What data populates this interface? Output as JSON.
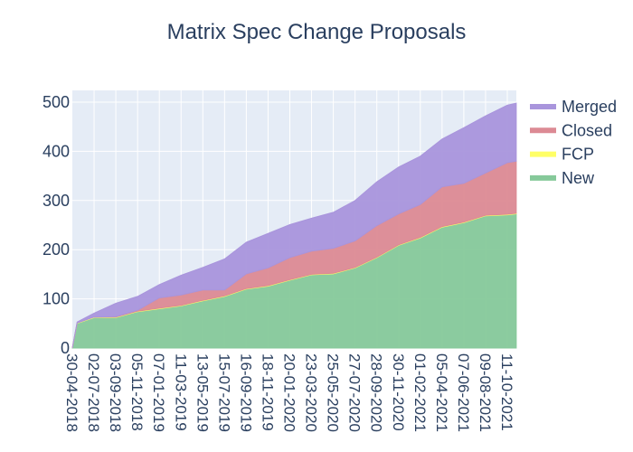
{
  "chart_data": {
    "type": "area",
    "stacked": true,
    "title": "Matrix Spec Change Proposals",
    "xlabel": "",
    "ylabel": "",
    "ylim": [
      0,
      520
    ],
    "yticks": [
      0,
      100,
      200,
      300,
      400,
      500
    ],
    "xticks": [
      "30-04-2018",
      "02-07-2018",
      "03-09-2018",
      "05-11-2018",
      "07-01-2019",
      "11-03-2019",
      "13-05-2019",
      "15-07-2019",
      "16-09-2019",
      "18-11-2019",
      "20-01-2020",
      "23-03-2020",
      "25-05-2020",
      "27-07-2020",
      "28-09-2020",
      "30-11-2020",
      "01-02-2021",
      "05-04-2021",
      "07-06-2021",
      "09-08-2021",
      "11-10-2021"
    ],
    "x": [
      "30-04-2018",
      "14-05-2018",
      "02-07-2018",
      "03-09-2018",
      "05-11-2018",
      "07-01-2019",
      "11-03-2019",
      "13-05-2019",
      "15-07-2019",
      "16-09-2019",
      "18-11-2019",
      "20-01-2020",
      "23-03-2020",
      "25-05-2020",
      "27-07-2020",
      "28-09-2020",
      "30-11-2020",
      "01-02-2021",
      "05-04-2021",
      "07-06-2021",
      "09-08-2021",
      "11-10-2021",
      "06-11-2021"
    ],
    "grid": true,
    "legend_position": "right",
    "series": [
      {
        "name": "New",
        "color": "#86c99a",
        "values": [
          0,
          50,
          62,
          62,
          74,
          80,
          86,
          96,
          105,
          120,
          126,
          138,
          149,
          151,
          163,
          184,
          209,
          224,
          246,
          255,
          269,
          271,
          273
        ]
      },
      {
        "name": "FCP",
        "color": "#ffff66",
        "values": [
          0,
          1,
          1,
          1,
          1,
          1,
          1,
          1,
          1,
          1,
          1,
          1,
          1,
          1,
          1,
          1,
          1,
          1,
          1,
          1,
          1,
          1,
          1
        ]
      },
      {
        "name": "Closed",
        "color": "#dc8a94",
        "values": [
          0,
          0,
          0,
          1,
          2,
          21,
          21,
          21,
          12,
          30,
          36,
          45,
          47,
          51,
          54,
          64,
          63,
          67,
          81,
          79,
          86,
          105,
          106
        ]
      },
      {
        "name": "Merged",
        "color": "#a995dc",
        "values": [
          0,
          2,
          8,
          27,
          28,
          27,
          40,
          46,
          63,
          64,
          70,
          67,
          67,
          73,
          82,
          89,
          95,
          98,
          97,
          113,
          116,
          117,
          118
        ]
      }
    ],
    "legend_order": [
      "Merged",
      "Closed",
      "FCP",
      "New"
    ],
    "background": "#e5ecf6"
  }
}
